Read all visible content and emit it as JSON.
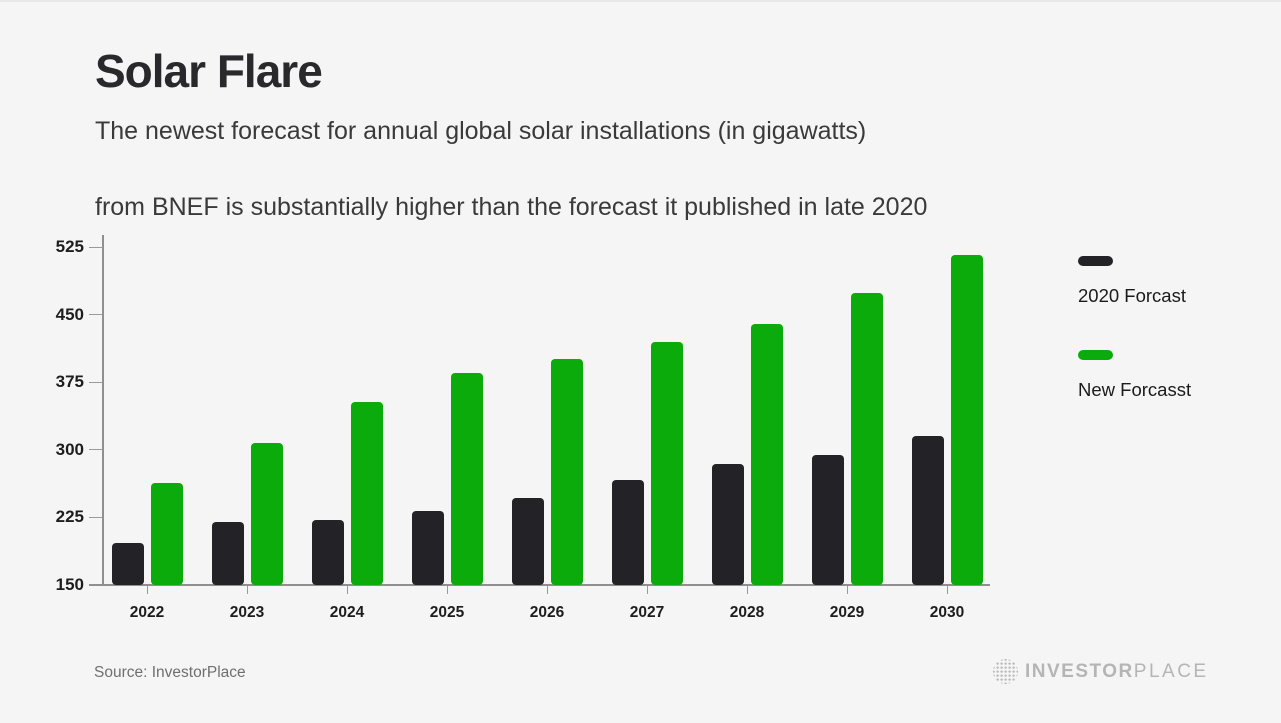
{
  "page": {
    "background": "#f5f5f5"
  },
  "header": {
    "title": "Solar Flare",
    "subtitle_line1": "The newest forecast for annual global solar installations (in gigawatts)",
    "subtitle_line2": "from BNEF is substantially higher than the forecast it published in late 2020"
  },
  "chart_data": {
    "type": "bar",
    "title": "Solar Flare",
    "unit": "gigawatts",
    "categories": [
      "2022",
      "2023",
      "2024",
      "2025",
      "2026",
      "2027",
      "2028",
      "2029",
      "2030"
    ],
    "series": [
      {
        "name": "2020 Forcast",
        "color": "#232327",
        "values": [
          197,
          220,
          222,
          232,
          246,
          267,
          284,
          294,
          315
        ]
      },
      {
        "name": "New Forcasst",
        "color": "#0cab0c",
        "values": [
          263,
          308,
          353,
          385,
          401,
          420,
          440,
          474,
          516
        ]
      }
    ],
    "ylim": [
      150,
      525
    ],
    "yticks": [
      150,
      225,
      300,
      375,
      450,
      525
    ],
    "grid": false,
    "legend_position": "right"
  },
  "footer": {
    "source": "Source: InvestorPlace",
    "logo_icon": "dotted-globe-icon",
    "logo_bold": "INVESTOR",
    "logo_light": "PLACE"
  }
}
